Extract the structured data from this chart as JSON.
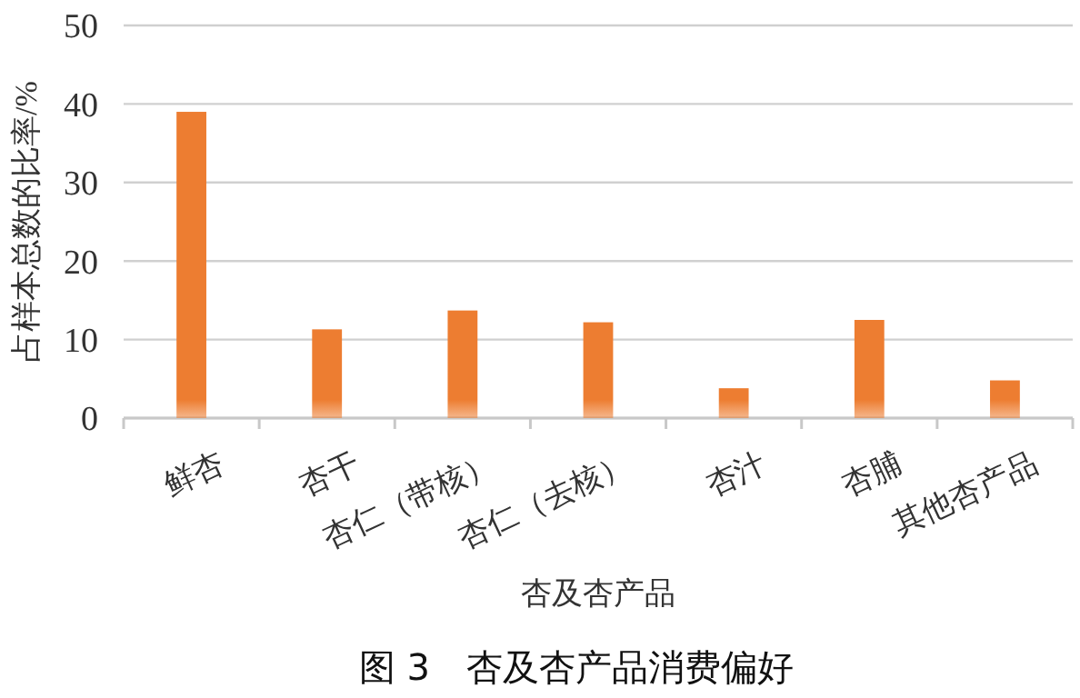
{
  "chart_data": {
    "type": "bar",
    "title": "图 3　杏及杏产品消费偏好",
    "xlabel": "杏及杏产品",
    "ylabel": "占样本总数的比率/%",
    "categories": [
      "鲜杏",
      "杏干",
      "杏仁（带核）",
      "杏仁（去核）",
      "杏汁",
      "杏脯",
      "其他杏产品"
    ],
    "values": [
      39.0,
      11.3,
      13.7,
      12.2,
      3.8,
      12.5,
      4.8
    ],
    "color": "#ed7d31",
    "ylim": [
      0,
      50
    ],
    "yticks": [
      0,
      10,
      20,
      30,
      40,
      50
    ],
    "grid": "y"
  }
}
